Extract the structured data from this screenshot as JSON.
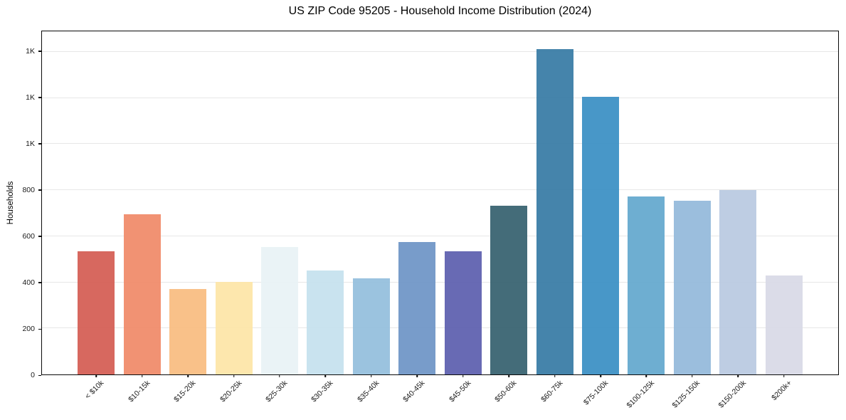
{
  "chart_data": {
    "type": "bar",
    "title": "US ZIP Code 95205 - Household Income Distribution (2024)",
    "xlabel": "",
    "ylabel": "Households",
    "categories": [
      "< $10k",
      "$10-15k",
      "$15-20k",
      "$20-25k",
      "$25-30k",
      "$30-35k",
      "$35-40k",
      "$40-45k",
      "$45-50k",
      "$50-60k",
      "$60-75k",
      "$75-100k",
      "$100-125k",
      "$125-150k",
      "$150-200k",
      "$200k+"
    ],
    "values": [
      536,
      695,
      372,
      402,
      554,
      452,
      418,
      576,
      533,
      732,
      1412,
      1206,
      772,
      754,
      799,
      428
    ],
    "bar_colors": [
      "#d45d53",
      "#f08a68",
      "#f9bc80",
      "#fde5a7",
      "#e8f2f5",
      "#c5e1ee",
      "#93bedd",
      "#6e94c6",
      "#5c5fae",
      "#36616f",
      "#377ba5",
      "#3a8fc4",
      "#63a8cd",
      "#93b9da",
      "#b9c9e1",
      "#d8d9e6"
    ],
    "ylim": [
      0,
      1489
    ],
    "yticks": [
      {
        "value": 0,
        "label": "0"
      },
      {
        "value": 200,
        "label": "200"
      },
      {
        "value": 400,
        "label": "400"
      },
      {
        "value": 600,
        "label": "600"
      },
      {
        "value": 800,
        "label": "800"
      },
      {
        "value": 1000,
        "label": "1K"
      },
      {
        "value": 1200,
        "label": "1K"
      },
      {
        "value": 1400,
        "label": "1K"
      }
    ],
    "grid": "horizontal",
    "grid_color": "#e7e7e7",
    "legend": "none",
    "x_tick_rotation_deg": 45
  }
}
